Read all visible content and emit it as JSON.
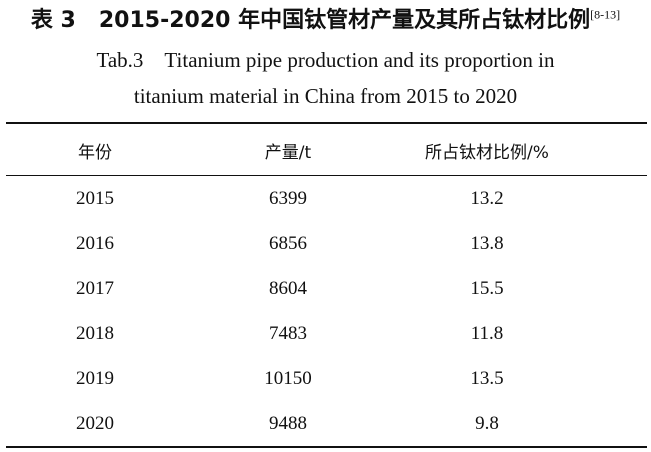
{
  "caption": {
    "zh_label": "表 3",
    "zh_title": "2015-2020 年中国钛管材产量及其所占钛材比例",
    "ref": "[8-13]",
    "en_line1": "Tab.3　Titanium pipe production and its proportion in",
    "en_line2": "titanium material in China from 2015 to 2020"
  },
  "table": {
    "headers": [
      "年份",
      "产量/t",
      "所占钛材比例/%"
    ],
    "rows": [
      [
        "2015",
        "6399",
        "13.2"
      ],
      [
        "2016",
        "6856",
        "13.8"
      ],
      [
        "2017",
        "8604",
        "15.5"
      ],
      [
        "2018",
        "7483",
        "11.8"
      ],
      [
        "2019",
        "10150",
        "13.5"
      ],
      [
        "2020",
        "9488",
        "9.8"
      ]
    ]
  }
}
